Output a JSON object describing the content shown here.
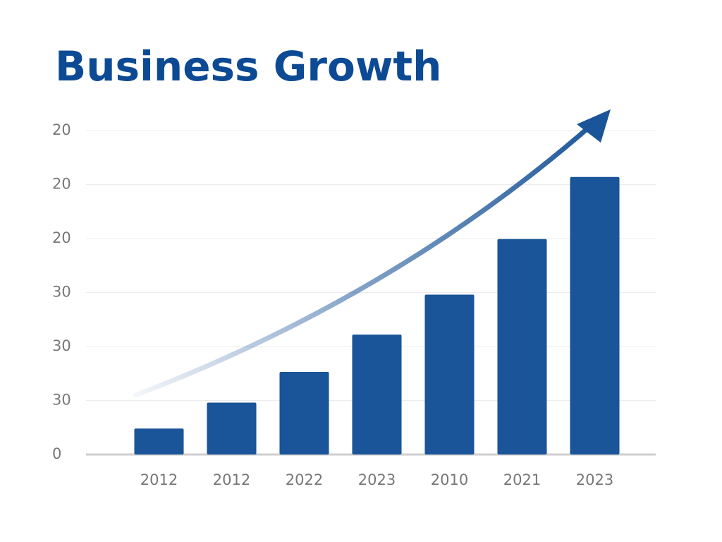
{
  "chart_data": {
    "type": "bar",
    "title": "Business Growth",
    "categories": [
      "2012",
      "2012",
      "2022",
      "2023",
      "2010",
      "2021",
      "2023"
    ],
    "values": [
      0.48,
      0.96,
      1.53,
      2.22,
      2.96,
      3.99,
      5.14
    ],
    "color": "#1a5499",
    "ylim": [
      0,
      6
    ],
    "yticks": [
      0,
      {
        "value": 1,
        "label": "30"
      },
      {
        "value": 2,
        "label": "30"
      },
      {
        "value": 3,
        "label": "30"
      },
      {
        "value": 4,
        "label": "20"
      },
      {
        "value": 5,
        "label": "20"
      },
      {
        "value": 6,
        "label": "20"
      }
    ],
    "grid": true
  }
}
